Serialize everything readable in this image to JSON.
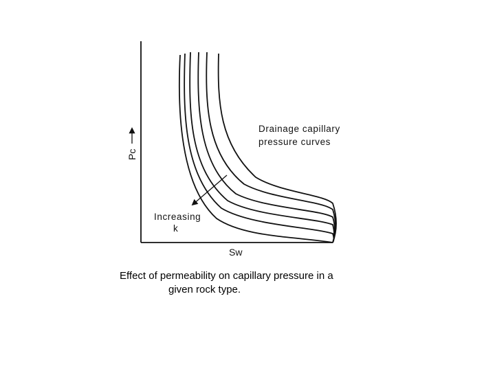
{
  "figure": {
    "x_axis_label": "Sw",
    "y_axis_label": "Pc",
    "curves_annotation": [
      "Drainage capillary",
      "pressure curves"
    ],
    "arrow_annotation": [
      "Increasing",
      "k"
    ],
    "curve_count": 6
  },
  "caption": {
    "line1": "Effect of permeability on capillary pressure in a",
    "line2": "given rock type."
  }
}
